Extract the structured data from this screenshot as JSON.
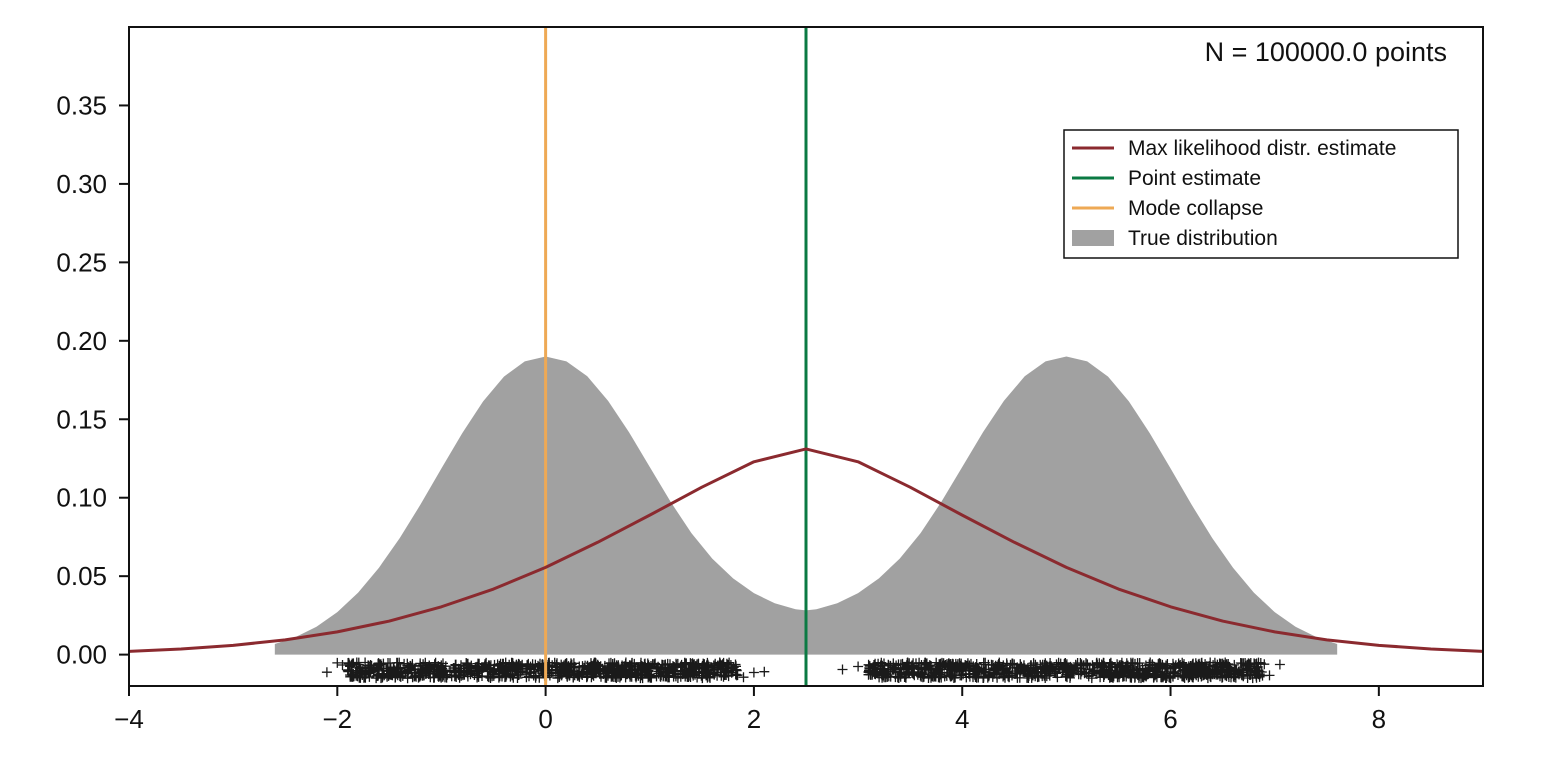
{
  "chart_data": {
    "type": "line",
    "title": "",
    "xlabel": "",
    "ylabel": "",
    "xlim": [
      -4,
      9
    ],
    "ylim": [
      -0.02,
      0.4
    ],
    "x_ticks": [
      -4,
      -2,
      0,
      2,
      4,
      6,
      8
    ],
    "x_tick_labels": [
      "−4",
      "−2",
      "0",
      "2",
      "4",
      "6",
      "8"
    ],
    "y_ticks": [
      0.0,
      0.05,
      0.1,
      0.15,
      0.2,
      0.25,
      0.3,
      0.35
    ],
    "y_tick_labels": [
      "0.00",
      "0.05",
      "0.10",
      "0.15",
      "0.20",
      "0.25",
      "0.30",
      "0.35"
    ],
    "grid": false,
    "annotation": "N = 100000.0 points",
    "legend": {
      "placement": "upper-right",
      "entries": [
        {
          "label": "Max likelihood distr. estimate",
          "kind": "line",
          "color": "#8b2a2f"
        },
        {
          "label": "Point estimate",
          "kind": "line",
          "color": "#0b7a43"
        },
        {
          "label": "Mode collapse",
          "kind": "line",
          "color": "#eea955"
        },
        {
          "label": "True distribution",
          "kind": "patch",
          "color": "#a1a1a1"
        }
      ]
    },
    "series": [
      {
        "name": "True distribution",
        "kind": "area",
        "color": "#a1a1a1",
        "x": [
          -2.6,
          -2.4,
          -2.2,
          -2.0,
          -1.8,
          -1.6,
          -1.4,
          -1.2,
          -1.0,
          -0.8,
          -0.6,
          -0.4,
          -0.2,
          0.0,
          0.2,
          0.4,
          0.6,
          0.8,
          1.0,
          1.2,
          1.4,
          1.6,
          1.8,
          2.0,
          2.2,
          2.4,
          2.5,
          2.6,
          2.8,
          3.0,
          3.2,
          3.4,
          3.6,
          3.8,
          4.0,
          4.2,
          4.4,
          4.6,
          4.8,
          5.0,
          5.2,
          5.4,
          5.6,
          5.8,
          6.0,
          6.2,
          6.4,
          6.6,
          6.8,
          7.0,
          7.2,
          7.4,
          7.6
        ],
        "y": [
          0.0068,
          0.0112,
          0.0178,
          0.0271,
          0.0395,
          0.0554,
          0.0743,
          0.0958,
          0.1187,
          0.1412,
          0.1614,
          0.1772,
          0.1869,
          0.19,
          0.1869,
          0.1774,
          0.1617,
          0.1418,
          0.1196,
          0.0974,
          0.0774,
          0.0612,
          0.0486,
          0.0392,
          0.0327,
          0.0289,
          0.0282,
          0.0289,
          0.0327,
          0.0392,
          0.0486,
          0.0612,
          0.0774,
          0.0974,
          0.1196,
          0.1418,
          0.1617,
          0.1774,
          0.1869,
          0.19,
          0.1869,
          0.1772,
          0.1614,
          0.1412,
          0.1187,
          0.0958,
          0.0743,
          0.0554,
          0.0395,
          0.0271,
          0.0178,
          0.0112,
          0.0068
        ]
      },
      {
        "name": "Max likelihood distr. estimate",
        "kind": "line",
        "color": "#8b2a2f",
        "x": [
          -4.0,
          -3.5,
          -3.0,
          -2.5,
          -2.0,
          -1.5,
          -1.0,
          -0.5,
          0.0,
          0.5,
          1.0,
          1.5,
          2.0,
          2.5,
          3.0,
          3.5,
          4.0,
          4.5,
          5.0,
          5.5,
          6.0,
          6.5,
          7.0,
          7.5,
          8.0,
          8.5,
          9.0
        ],
        "y": [
          0.0021,
          0.0036,
          0.0059,
          0.0094,
          0.0145,
          0.0214,
          0.0305,
          0.0418,
          0.0556,
          0.0716,
          0.0889,
          0.1067,
          0.1229,
          0.1311,
          0.1229,
          0.1067,
          0.0889,
          0.0716,
          0.0556,
          0.0418,
          0.0305,
          0.0214,
          0.0145,
          0.0094,
          0.0059,
          0.0036,
          0.0021
        ]
      },
      {
        "name": "Point estimate",
        "kind": "vline",
        "color": "#0b7a43",
        "x": 2.5
      },
      {
        "name": "Mode collapse",
        "kind": "vline",
        "color": "#eea955",
        "x": 0.0
      },
      {
        "name": "samples",
        "kind": "rug",
        "color": "#1a1a1a",
        "marker": "+",
        "y_range": [
          -0.015,
          -0.005
        ],
        "clusters": [
          [
            -1.9,
            1.85
          ],
          [
            3.1,
            6.9
          ]
        ],
        "outliers": [
          -2.1,
          -2.0,
          -1.95,
          1.9,
          2.0,
          2.1,
          2.85,
          3.0,
          6.95,
          7.05
        ]
      }
    ]
  }
}
